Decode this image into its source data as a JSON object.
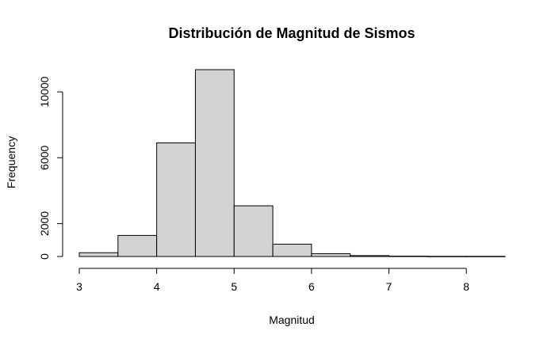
{
  "chart_data": {
    "type": "bar",
    "title": "Distribución de Magnitud de Sismos",
    "xlabel": "Magnitud",
    "ylabel": "Frequency",
    "bin_edges": [
      3.0,
      3.5,
      4.0,
      4.5,
      5.0,
      5.5,
      6.0,
      6.5,
      7.0,
      7.5,
      8.0,
      8.5
    ],
    "values": [
      230,
      1280,
      6900,
      11350,
      3080,
      750,
      170,
      55,
      20,
      10,
      10
    ],
    "xlim": [
      3.0,
      8.5
    ],
    "ylim": [
      0,
      11350
    ],
    "x_ticks": [
      3,
      4,
      5,
      6,
      7,
      8
    ],
    "y_ticks": [
      0,
      2000,
      6000,
      10000
    ],
    "bar_color": "#d3d3d3",
    "grid": false,
    "legend": "none"
  }
}
